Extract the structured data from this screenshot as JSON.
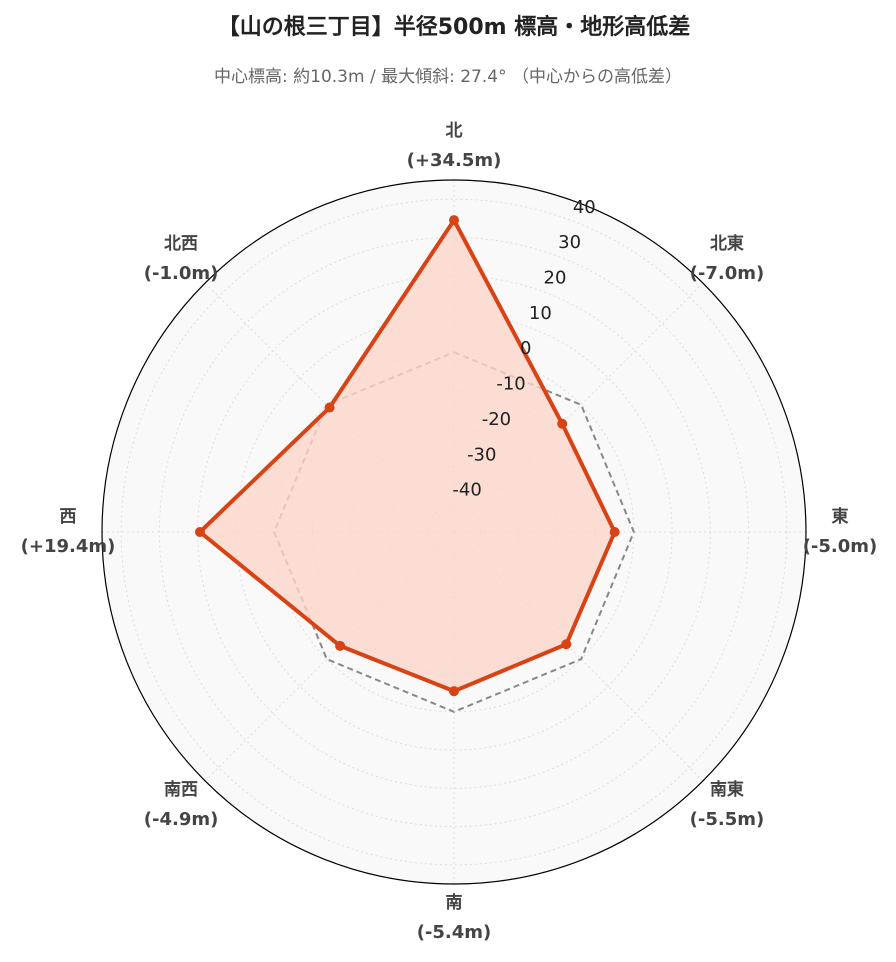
{
  "chart_data": {
    "type": "radar",
    "title": "【山の根三丁目】半径500m 標高・地形高低差",
    "subtitle": "中心標高: 約10.3m / 最大傾斜: 27.4° （中心からの高低差）",
    "categories": [
      "北",
      "北東",
      "東",
      "南東",
      "南",
      "南西",
      "西",
      "北西"
    ],
    "values": [
      34.5,
      -7.0,
      -5.0,
      -5.5,
      -5.4,
      -4.9,
      19.4,
      -1.0
    ],
    "value_labels": [
      "(+34.5m)",
      "(-7.0m)",
      "(-5.0m)",
      "(-5.5m)",
      "(-5.4m)",
      "(-4.9m)",
      "(+19.4m)",
      "(-1.0m)"
    ],
    "color": "#d84315",
    "fill_color": "#fcd6ca",
    "reference_value": 0,
    "ylim": [
      -47,
      45
    ],
    "yticks": [
      -40,
      -30,
      -20,
      -10,
      0,
      10,
      20,
      30,
      40
    ],
    "grid": true
  }
}
